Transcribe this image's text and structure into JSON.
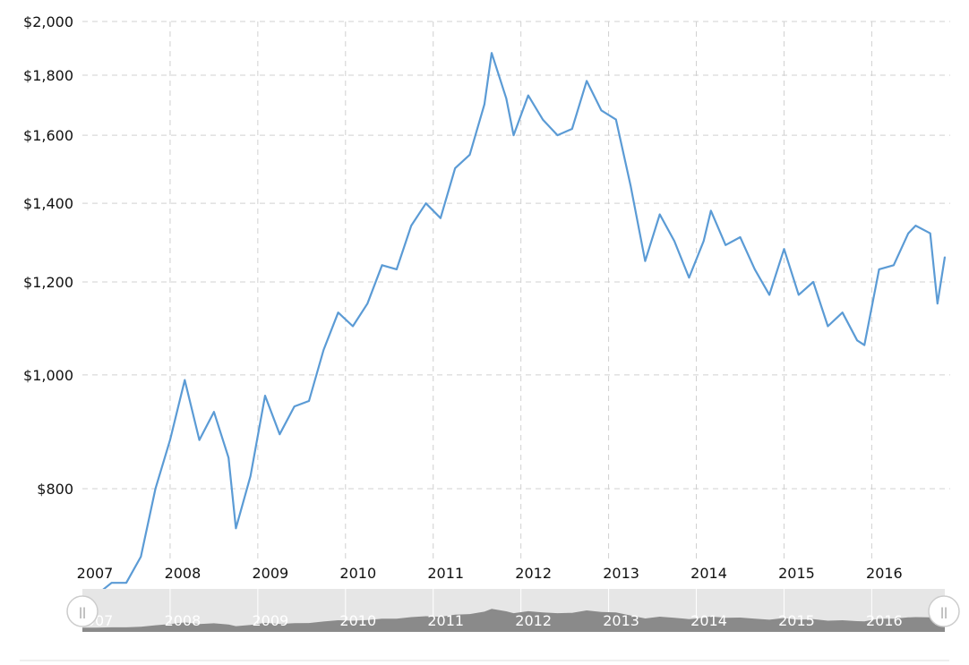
{
  "colors": {
    "line": "#5b9bd5",
    "grid": "#d0d0d0",
    "navigator_bg": "#e6e6e6",
    "navigator_area": "#8a8a8a",
    "text": "#111111"
  },
  "chart_data": {
    "type": "line",
    "title": "",
    "xlabel": "",
    "ylabel": "",
    "log_scale": true,
    "grid": true,
    "ylim": [
      700,
      2000
    ],
    "xlim": [
      "2007-01",
      "2016-11"
    ],
    "y_ticks": [
      {
        "value": 800,
        "label": "$800"
      },
      {
        "value": 1000,
        "label": "$1,000"
      },
      {
        "value": 1200,
        "label": "$1,200"
      },
      {
        "value": 1400,
        "label": "$1,400"
      },
      {
        "value": 1600,
        "label": "$1,600"
      },
      {
        "value": 1800,
        "label": "$1,800"
      },
      {
        "value": 2000,
        "label": "$2,000"
      }
    ],
    "x_ticks": [
      "2007",
      "2008",
      "2009",
      "2010",
      "2011",
      "2012",
      "2013",
      "2014",
      "2015",
      "2016"
    ],
    "series": [
      {
        "x": [
          "2007-01",
          "2007-03",
          "2007-05",
          "2007-07",
          "2007-09",
          "2007-11",
          "2008-01",
          "2008-03",
          "2008-05",
          "2008-07",
          "2008-09",
          "2008-10",
          "2008-12",
          "2009-02",
          "2009-04",
          "2009-06",
          "2009-08",
          "2009-10",
          "2009-12",
          "2010-02",
          "2010-04",
          "2010-06",
          "2010-08",
          "2010-10",
          "2010-12",
          "2011-02",
          "2011-04",
          "2011-06",
          "2011-08",
          "2011-09",
          "2011-11",
          "2011-12",
          "2012-02",
          "2012-04",
          "2012-06",
          "2012-08",
          "2012-10",
          "2012-12",
          "2013-02",
          "2013-04",
          "2013-06",
          "2013-08",
          "2013-10",
          "2013-12",
          "2014-02",
          "2014-03",
          "2014-05",
          "2014-07",
          "2014-09",
          "2014-11",
          "2015-01",
          "2015-03",
          "2015-05",
          "2015-07",
          "2015-09",
          "2015-11",
          "2015-12",
          "2016-02",
          "2016-04",
          "2016-06",
          "2016-07",
          "2016-09",
          "2016-10",
          "2016-11"
        ],
        "y": [
          640,
          650,
          665,
          665,
          700,
          800,
          880,
          990,
          880,
          930,
          850,
          740,
          820,
          960,
          890,
          940,
          950,
          1050,
          1130,
          1100,
          1150,
          1240,
          1230,
          1340,
          1400,
          1360,
          1500,
          1540,
          1700,
          1880,
          1720,
          1600,
          1730,
          1650,
          1600,
          1620,
          1780,
          1680,
          1650,
          1450,
          1250,
          1370,
          1300,
          1210,
          1300,
          1380,
          1290,
          1310,
          1230,
          1170,
          1280,
          1170,
          1200,
          1100,
          1130,
          1070,
          1060,
          1230,
          1240,
          1320,
          1340,
          1320,
          1150,
          1260
        ]
      }
    ]
  },
  "navigator": {
    "year_labels": [
      "2007",
      "2008",
      "2009",
      "2010",
      "2011",
      "2012",
      "2013",
      "2014",
      "2015",
      "2016"
    ],
    "left_handle_symbol": "||",
    "right_handle_symbol": "||"
  }
}
